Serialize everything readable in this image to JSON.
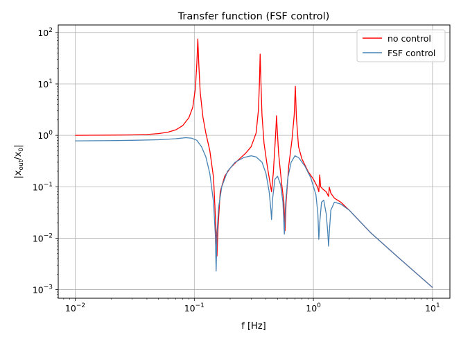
{
  "chart_data": {
    "type": "line",
    "title": "Transfer function (FSF control)",
    "xlabel": "f [Hz]",
    "ylabel": "|x_out/x_0|",
    "xscale": "log",
    "yscale": "log",
    "xlim": [
      0.0072,
      14
    ],
    "ylim": [
      0.00068,
      140
    ],
    "grid": true,
    "legend_position": "upper right",
    "x_ticks": [
      {
        "base": "10",
        "exp": "−2",
        "value": 0.01
      },
      {
        "base": "10",
        "exp": "−1",
        "value": 0.1
      },
      {
        "base": "10",
        "exp": "0",
        "value": 1
      },
      {
        "base": "10",
        "exp": "1",
        "value": 10
      }
    ],
    "y_ticks": [
      {
        "base": "10",
        "exp": "−3",
        "value": 0.001
      },
      {
        "base": "10",
        "exp": "−2",
        "value": 0.01
      },
      {
        "base": "10",
        "exp": "−1",
        "value": 0.1
      },
      {
        "base": "10",
        "exp": "0",
        "value": 1
      },
      {
        "base": "10",
        "exp": "1",
        "value": 10
      },
      {
        "base": "10",
        "exp": "2",
        "value": 100
      }
    ],
    "series": [
      {
        "name": "no control",
        "color": "#ff0000",
        "points": [
          [
            0.01,
            1.0
          ],
          [
            0.02,
            1.01
          ],
          [
            0.03,
            1.02
          ],
          [
            0.04,
            1.04
          ],
          [
            0.05,
            1.08
          ],
          [
            0.06,
            1.15
          ],
          [
            0.07,
            1.28
          ],
          [
            0.08,
            1.55
          ],
          [
            0.09,
            2.2
          ],
          [
            0.097,
            3.5
          ],
          [
            0.102,
            8.0
          ],
          [
            0.105,
            25
          ],
          [
            0.107,
            75
          ],
          [
            0.109,
            25
          ],
          [
            0.112,
            7
          ],
          [
            0.118,
            2.3
          ],
          [
            0.125,
            1.1
          ],
          [
            0.135,
            0.5
          ],
          [
            0.145,
            0.15
          ],
          [
            0.152,
            0.015
          ],
          [
            0.155,
            0.0045
          ],
          [
            0.158,
            0.015
          ],
          [
            0.165,
            0.08
          ],
          [
            0.18,
            0.16
          ],
          [
            0.2,
            0.23
          ],
          [
            0.23,
            0.32
          ],
          [
            0.27,
            0.45
          ],
          [
            0.3,
            0.6
          ],
          [
            0.33,
            1.1
          ],
          [
            0.345,
            3.0
          ],
          [
            0.352,
            10
          ],
          [
            0.357,
            38
          ],
          [
            0.362,
            12
          ],
          [
            0.37,
            2.5
          ],
          [
            0.385,
            0.7
          ],
          [
            0.41,
            0.25
          ],
          [
            0.435,
            0.11
          ],
          [
            0.445,
            0.08
          ],
          [
            0.46,
            0.18
          ],
          [
            0.475,
            0.6
          ],
          [
            0.485,
            1.4
          ],
          [
            0.49,
            2.4
          ],
          [
            0.497,
            1.3
          ],
          [
            0.51,
            0.45
          ],
          [
            0.54,
            0.12
          ],
          [
            0.565,
            0.05
          ],
          [
            0.578,
            0.014
          ],
          [
            0.59,
            0.05
          ],
          [
            0.62,
            0.25
          ],
          [
            0.66,
            0.8
          ],
          [
            0.69,
            2.5
          ],
          [
            0.705,
            9
          ],
          [
            0.72,
            2.2
          ],
          [
            0.75,
            0.6
          ],
          [
            0.8,
            0.35
          ],
          [
            0.9,
            0.2
          ],
          [
            1.0,
            0.14
          ],
          [
            1.08,
            0.1
          ],
          [
            1.11,
            0.08
          ],
          [
            1.13,
            0.17
          ],
          [
            1.15,
            0.1
          ],
          [
            1.2,
            0.09
          ],
          [
            1.28,
            0.08
          ],
          [
            1.34,
            0.065
          ],
          [
            1.36,
            0.098
          ],
          [
            1.4,
            0.075
          ],
          [
            1.5,
            0.06
          ],
          [
            1.7,
            0.05
          ],
          [
            2.0,
            0.035
          ],
          [
            3.0,
            0.013
          ],
          [
            5.0,
            0.0045
          ],
          [
            10.0,
            0.0011
          ]
        ]
      },
      {
        "name": "FSF control",
        "color": "#4682b4",
        "points": [
          [
            0.01,
            0.78
          ],
          [
            0.02,
            0.79
          ],
          [
            0.03,
            0.8
          ],
          [
            0.05,
            0.82
          ],
          [
            0.07,
            0.86
          ],
          [
            0.085,
            0.9
          ],
          [
            0.095,
            0.88
          ],
          [
            0.105,
            0.8
          ],
          [
            0.115,
            0.6
          ],
          [
            0.125,
            0.38
          ],
          [
            0.135,
            0.18
          ],
          [
            0.145,
            0.05
          ],
          [
            0.15,
            0.012
          ],
          [
            0.1525,
            0.0023
          ],
          [
            0.155,
            0.012
          ],
          [
            0.16,
            0.04
          ],
          [
            0.17,
            0.1
          ],
          [
            0.19,
            0.2
          ],
          [
            0.22,
            0.3
          ],
          [
            0.26,
            0.37
          ],
          [
            0.3,
            0.4
          ],
          [
            0.33,
            0.38
          ],
          [
            0.37,
            0.3
          ],
          [
            0.4,
            0.18
          ],
          [
            0.425,
            0.08
          ],
          [
            0.44,
            0.035
          ],
          [
            0.445,
            0.023
          ],
          [
            0.455,
            0.06
          ],
          [
            0.475,
            0.14
          ],
          [
            0.5,
            0.16
          ],
          [
            0.53,
            0.11
          ],
          [
            0.555,
            0.05
          ],
          [
            0.57,
            0.012
          ],
          [
            0.585,
            0.05
          ],
          [
            0.61,
            0.15
          ],
          [
            0.65,
            0.3
          ],
          [
            0.7,
            0.4
          ],
          [
            0.75,
            0.37
          ],
          [
            0.85,
            0.25
          ],
          [
            0.95,
            0.15
          ],
          [
            1.05,
            0.07
          ],
          [
            1.09,
            0.03
          ],
          [
            1.11,
            0.0095
          ],
          [
            1.13,
            0.02
          ],
          [
            1.17,
            0.05
          ],
          [
            1.22,
            0.055
          ],
          [
            1.28,
            0.03
          ],
          [
            1.32,
            0.013
          ],
          [
            1.34,
            0.007
          ],
          [
            1.36,
            0.013
          ],
          [
            1.4,
            0.035
          ],
          [
            1.5,
            0.05
          ],
          [
            1.7,
            0.046
          ],
          [
            2.0,
            0.035
          ],
          [
            3.0,
            0.013
          ],
          [
            5.0,
            0.0045
          ],
          [
            10.0,
            0.0011
          ]
        ]
      }
    ]
  }
}
